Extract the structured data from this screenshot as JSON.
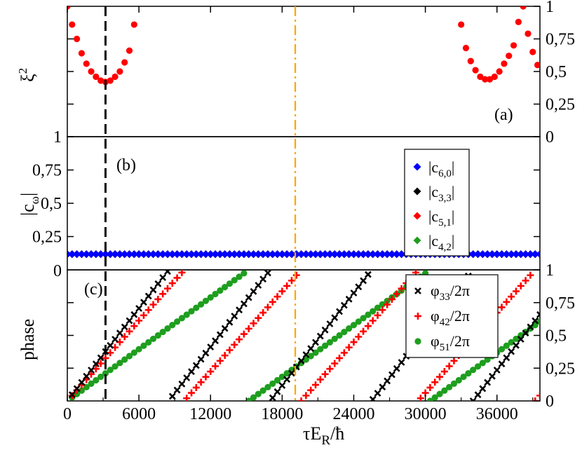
{
  "chart_data": {
    "type": "scatter",
    "x_axis": {
      "label_html": "τE_R/ħ",
      "label_main": "τE",
      "label_sub": "R",
      "label_tail": "/ħ",
      "range": [
        0,
        39600
      ],
      "ticks": [
        0,
        6000,
        12000,
        18000,
        24000,
        30000,
        36000
      ],
      "tick_labels": [
        "0",
        "6000",
        "12000",
        "18000",
        "24000",
        "30000",
        "36000"
      ]
    },
    "markers": [
      {
        "name": "black-dashed-line",
        "x": 3200,
        "color": "#000000",
        "style": "dashed"
      },
      {
        "name": "orange-dashdot-line",
        "x": 19100,
        "color": "#ffa500",
        "style": "dashdot"
      }
    ],
    "panels": [
      {
        "id": "a",
        "label": "(a)",
        "ylabel": "ξ",
        "ylabel_sup": "2",
        "ylim": [
          0,
          1
        ],
        "left_tick_labels": [],
        "right_ticks": [
          0,
          0.25,
          0.5,
          0.75,
          1
        ],
        "right_tick_labels": [
          "0",
          "0,25",
          "0,5",
          "0,75",
          "1"
        ],
        "series": [
          {
            "name": "ξ²",
            "color": "#ff0000",
            "marker": "circle",
            "x": [
              0,
              400,
              800,
              1200,
              1600,
              2000,
              2400,
              2800,
              3200,
              3600,
              4000,
              4400,
              4800,
              5200,
              5600,
              33000,
              33400,
              33800,
              34200,
              34600,
              35000,
              35400,
              35800,
              36200,
              36600,
              37000,
              37400,
              37800,
              38200,
              38600,
              39000,
              39400
            ],
            "y": [
              1.0,
              0.86,
              0.75,
              0.64,
              0.56,
              0.5,
              0.46,
              0.43,
              0.42,
              0.43,
              0.46,
              0.5,
              0.57,
              0.66,
              0.86,
              0.86,
              0.68,
              0.58,
              0.51,
              0.46,
              0.44,
              0.44,
              0.46,
              0.5,
              0.56,
              0.62,
              0.7,
              0.88,
              1.0,
              0.79,
              0.65,
              0.55
            ]
          }
        ]
      },
      {
        "id": "b",
        "label": "(b)",
        "ylabel": "|c",
        "ylabel_sub": "ω",
        "ylabel_tail": "|",
        "ylim": [
          0,
          1
        ],
        "left_ticks": [
          0.25,
          0.5,
          0.75,
          1
        ],
        "left_tick_labels": [
          "0,25",
          "0,5",
          "0,75",
          "1"
        ],
        "right_tick_labels": [],
        "x_step": 400,
        "series": [
          {
            "name": "|c6,0|",
            "label_main": "|c",
            "label_sub": "6,0",
            "label_tail": "|",
            "color": "#0000ff",
            "marker": "diamond",
            "value": 0.118
          },
          {
            "name": "|c3,3|",
            "label_main": "|c",
            "label_sub": "3,3",
            "label_tail": "|",
            "color": "#000000",
            "marker": "diamond",
            "value": 0.118
          },
          {
            "name": "|c5,1|",
            "label_main": "|c",
            "label_sub": "5,1",
            "label_tail": "|",
            "color": "#ff0000",
            "marker": "diamond",
            "value": 0.118
          },
          {
            "name": "|c4,2|",
            "label_main": "|c",
            "label_sub": "4,2",
            "label_tail": "|",
            "color": "#1e9e1e",
            "marker": "diamond",
            "value": 0.118
          }
        ]
      },
      {
        "id": "c",
        "label": "(c)",
        "ylabel": "phase",
        "ylim": [
          0,
          1
        ],
        "left_tick_labels": [
          "0"
        ],
        "right_ticks": [
          0,
          0.25,
          0.5,
          0.75,
          1
        ],
        "right_tick_labels": [
          "0",
          "0,25",
          "0,5",
          "0,75",
          "1"
        ],
        "x_step": 400,
        "series": [
          {
            "name": "φ33/2π",
            "label_main": "φ",
            "label_sub": "33",
            "label_tail": "/2π",
            "color": "#000000",
            "marker": "x",
            "period": 8500,
            "offset": 0
          },
          {
            "name": "φ42/2π",
            "label_main": "φ",
            "label_sub": "42",
            "label_tail": "/2π",
            "color": "#ff0000",
            "marker": "plus",
            "period": 9800,
            "offset": 0
          },
          {
            "name": "φ51/2π",
            "label_main": "φ",
            "label_sub": "51",
            "label_tail": "/2π",
            "color": "#1e9e1e",
            "marker": "circle",
            "period": 15200,
            "offset": 0
          }
        ]
      }
    ]
  }
}
